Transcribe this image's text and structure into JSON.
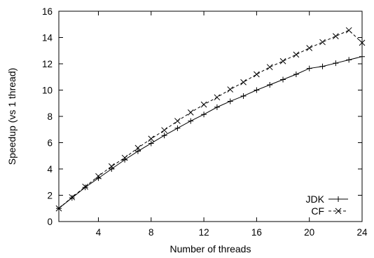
{
  "chart_data": {
    "type": "line",
    "title": "",
    "xlabel": "Number of threads",
    "ylabel": "Speedup (vs 1 thread)",
    "xlim": [
      1,
      24
    ],
    "ylim": [
      0,
      16
    ],
    "xticks": [
      4,
      8,
      12,
      16,
      20,
      24
    ],
    "yticks": [
      0,
      2,
      4,
      6,
      8,
      10,
      12,
      14,
      16
    ],
    "grid": false,
    "legend_position": "bottom-right",
    "x": [
      1,
      2,
      3,
      4,
      5,
      6,
      7,
      8,
      9,
      10,
      11,
      12,
      13,
      14,
      15,
      16,
      17,
      18,
      19,
      20,
      21,
      22,
      23,
      24
    ],
    "series": [
      {
        "name": "JDK",
        "marker": "plus",
        "line_style": "solid",
        "color": "#000000",
        "values": [
          1.0,
          1.8,
          2.6,
          3.3,
          4.0,
          4.7,
          5.35,
          5.95,
          6.55,
          7.1,
          7.65,
          8.15,
          8.7,
          9.15,
          9.55,
          10.0,
          10.4,
          10.8,
          11.2,
          11.65,
          11.8,
          12.05,
          12.3,
          12.55
        ]
      },
      {
        "name": "CF",
        "marker": "cross",
        "line_style": "dashed",
        "color": "#000000",
        "values": [
          1.0,
          1.85,
          2.65,
          3.45,
          4.2,
          4.85,
          5.6,
          6.3,
          6.95,
          7.65,
          8.3,
          8.9,
          9.45,
          10.05,
          10.6,
          11.2,
          11.75,
          12.2,
          12.7,
          13.2,
          13.65,
          14.1,
          14.55,
          13.6
        ]
      }
    ]
  }
}
